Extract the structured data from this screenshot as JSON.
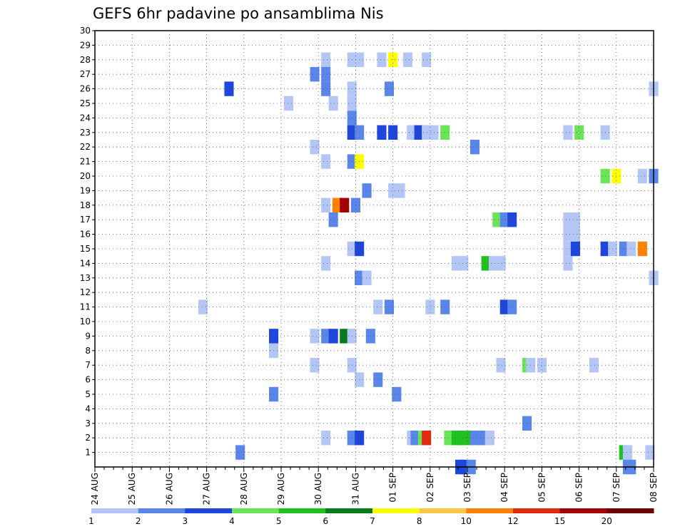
{
  "chart_data": {
    "type": "heatmap",
    "title": "GEFS 6hr padavine po ansamblima Nis",
    "x_tick_labels": [
      "24 AUG",
      "25 AUG",
      "26 AUG",
      "27 AUG",
      "28 AUG",
      "29 AUG",
      "30 AUG",
      "31 AUG",
      "01 SEP",
      "02 SEP",
      "03 SEP",
      "04 SEP",
      "05 SEP",
      "06 SEP",
      "07 SEP",
      "08 SEP"
    ],
    "y_tick_labels": [
      "1",
      "2",
      "3",
      "4",
      "5",
      "6",
      "7",
      "8",
      "9",
      "10",
      "11",
      "12",
      "13",
      "14",
      "15",
      "16",
      "17",
      "18",
      "19",
      "20",
      "21",
      "22",
      "23",
      "24",
      "25",
      "26",
      "27",
      "28",
      "29",
      "30"
    ],
    "x_range_days": [
      0,
      15
    ],
    "y_range": [
      0,
      30
    ],
    "grid": true,
    "legend": {
      "position": "bottom",
      "thresholds": [
        "1",
        "2",
        "3",
        "4",
        "5",
        "6",
        "7",
        "8",
        "10",
        "12",
        "15",
        "20"
      ],
      "colors": [
        "#b4c6f5",
        "#5a86ea",
        "#1e46dc",
        "#6ce45a",
        "#20c020",
        "#0a7a1e",
        "#ffff00",
        "#ffc846",
        "#ff8200",
        "#e12a0e",
        "#a50000",
        "#6e0000"
      ]
    },
    "cells": [
      {
        "x": 9.8,
        "y": 0,
        "c": 3
      },
      {
        "x": 9.9,
        "y": 0,
        "c": 3
      },
      {
        "x": 10.1,
        "y": 0,
        "c": 2
      },
      {
        "x": 14.3,
        "y": 0,
        "c": 2
      },
      {
        "x": 14.4,
        "y": 0,
        "c": 2
      },
      {
        "x": 3.9,
        "y": 1,
        "c": 2
      },
      {
        "x": 14.2,
        "y": 1,
        "c": 5
      },
      {
        "x": 14.3,
        "y": 1,
        "c": 1
      },
      {
        "x": 14.9,
        "y": 1,
        "c": 1
      },
      {
        "x": 6.2,
        "y": 2,
        "c": 1
      },
      {
        "x": 6.9,
        "y": 2,
        "c": 2
      },
      {
        "x": 7.1,
        "y": 2,
        "c": 3
      },
      {
        "x": 8.5,
        "y": 2,
        "c": 1
      },
      {
        "x": 8.6,
        "y": 2,
        "c": 2
      },
      {
        "x": 8.8,
        "y": 2,
        "c": 4
      },
      {
        "x": 8.9,
        "y": 2,
        "c": 10
      },
      {
        "x": 9.5,
        "y": 2,
        "c": 4
      },
      {
        "x": 9.7,
        "y": 2,
        "c": 5
      },
      {
        "x": 9.8,
        "y": 2,
        "c": 5
      },
      {
        "x": 10.0,
        "y": 2,
        "c": 5
      },
      {
        "x": 10.2,
        "y": 2,
        "c": 2
      },
      {
        "x": 10.4,
        "y": 2,
        "c": 2
      },
      {
        "x": 10.6,
        "y": 2,
        "c": 1
      },
      {
        "x": 11.6,
        "y": 3,
        "c": 2
      },
      {
        "x": 4.8,
        "y": 5,
        "c": 2
      },
      {
        "x": 8.1,
        "y": 5,
        "c": 2
      },
      {
        "x": 7.1,
        "y": 6,
        "c": 1
      },
      {
        "x": 7.6,
        "y": 6,
        "c": 2
      },
      {
        "x": 5.9,
        "y": 7,
        "c": 1
      },
      {
        "x": 6.9,
        "y": 7,
        "c": 1
      },
      {
        "x": 10.9,
        "y": 7,
        "c": 1
      },
      {
        "x": 11.6,
        "y": 7,
        "c": 4
      },
      {
        "x": 11.7,
        "y": 7,
        "c": 1
      },
      {
        "x": 12.0,
        "y": 7,
        "c": 1
      },
      {
        "x": 13.4,
        "y": 7,
        "c": 1
      },
      {
        "x": 4.8,
        "y": 8,
        "c": 1
      },
      {
        "x": 4.8,
        "y": 9,
        "c": 3
      },
      {
        "x": 5.9,
        "y": 9,
        "c": 1
      },
      {
        "x": 6.2,
        "y": 9,
        "c": 2
      },
      {
        "x": 6.4,
        "y": 9,
        "c": 3
      },
      {
        "x": 6.7,
        "y": 9,
        "c": 6
      },
      {
        "x": 6.9,
        "y": 9,
        "c": 1
      },
      {
        "x": 7.4,
        "y": 9,
        "c": 2
      },
      {
        "x": 2.9,
        "y": 11,
        "c": 1
      },
      {
        "x": 7.6,
        "y": 11,
        "c": 1
      },
      {
        "x": 7.9,
        "y": 11,
        "c": 2
      },
      {
        "x": 9.0,
        "y": 11,
        "c": 1
      },
      {
        "x": 9.4,
        "y": 11,
        "c": 2
      },
      {
        "x": 11.0,
        "y": 11,
        "c": 3
      },
      {
        "x": 11.2,
        "y": 11,
        "c": 2
      },
      {
        "x": 7.1,
        "y": 13,
        "c": 2
      },
      {
        "x": 7.3,
        "y": 13,
        "c": 1
      },
      {
        "x": 15.0,
        "y": 13,
        "c": 1
      },
      {
        "x": 6.2,
        "y": 14,
        "c": 1
      },
      {
        "x": 9.7,
        "y": 14,
        "c": 1
      },
      {
        "x": 9.9,
        "y": 14,
        "c": 1
      },
      {
        "x": 10.5,
        "y": 14,
        "c": 5
      },
      {
        "x": 10.7,
        "y": 14,
        "c": 1
      },
      {
        "x": 10.9,
        "y": 14,
        "c": 1
      },
      {
        "x": 12.7,
        "y": 14,
        "c": 1
      },
      {
        "x": 6.9,
        "y": 15,
        "c": 1
      },
      {
        "x": 7.1,
        "y": 15,
        "c": 3
      },
      {
        "x": 12.7,
        "y": 15,
        "c": 1
      },
      {
        "x": 12.9,
        "y": 15,
        "c": 3
      },
      {
        "x": 13.7,
        "y": 15,
        "c": 3
      },
      {
        "x": 13.9,
        "y": 15,
        "c": 1
      },
      {
        "x": 14.2,
        "y": 15,
        "c": 2
      },
      {
        "x": 14.4,
        "y": 15,
        "c": 1
      },
      {
        "x": 14.7,
        "y": 15,
        "c": 9
      },
      {
        "x": 12.7,
        "y": 16,
        "c": 1
      },
      {
        "x": 12.9,
        "y": 16,
        "c": 1
      },
      {
        "x": 12.7,
        "y": 17,
        "c": 1
      },
      {
        "x": 12.9,
        "y": 17,
        "c": 1
      },
      {
        "x": 6.4,
        "y": 17,
        "c": 2
      },
      {
        "x": 10.8,
        "y": 17,
        "c": 4
      },
      {
        "x": 11.0,
        "y": 17,
        "c": 2
      },
      {
        "x": 11.2,
        "y": 17,
        "c": 3
      },
      {
        "x": 6.2,
        "y": 18,
        "c": 1
      },
      {
        "x": 6.5,
        "y": 18,
        "c": 9
      },
      {
        "x": 6.7,
        "y": 18,
        "c": 11
      },
      {
        "x": 7.0,
        "y": 18,
        "c": 2
      },
      {
        "x": 7.3,
        "y": 19,
        "c": 2
      },
      {
        "x": 8.0,
        "y": 19,
        "c": 1
      },
      {
        "x": 8.2,
        "y": 19,
        "c": 1
      },
      {
        "x": 14.7,
        "y": 20,
        "c": 1
      },
      {
        "x": 15.0,
        "y": 20,
        "c": 2
      },
      {
        "x": 13.7,
        "y": 20,
        "c": 4
      },
      {
        "x": 14.0,
        "y": 20,
        "c": 7
      },
      {
        "x": 6.2,
        "y": 21,
        "c": 1
      },
      {
        "x": 6.9,
        "y": 21,
        "c": 2
      },
      {
        "x": 7.1,
        "y": 21,
        "c": 7
      },
      {
        "x": 5.9,
        "y": 22,
        "c": 1
      },
      {
        "x": 10.2,
        "y": 22,
        "c": 2
      },
      {
        "x": 6.9,
        "y": 23,
        "c": 3
      },
      {
        "x": 7.1,
        "y": 23,
        "c": 2
      },
      {
        "x": 7.7,
        "y": 23,
        "c": 3
      },
      {
        "x": 8.0,
        "y": 23,
        "c": 3
      },
      {
        "x": 8.5,
        "y": 23,
        "c": 1
      },
      {
        "x": 8.7,
        "y": 23,
        "c": 3
      },
      {
        "x": 8.9,
        "y": 23,
        "c": 1
      },
      {
        "x": 9.1,
        "y": 23,
        "c": 1
      },
      {
        "x": 9.4,
        "y": 23,
        "c": 4
      },
      {
        "x": 12.7,
        "y": 23,
        "c": 1
      },
      {
        "x": 13.0,
        "y": 23,
        "c": 4
      },
      {
        "x": 13.7,
        "y": 23,
        "c": 1
      },
      {
        "x": 6.9,
        "y": 24,
        "c": 2
      },
      {
        "x": 5.2,
        "y": 25,
        "c": 1
      },
      {
        "x": 6.4,
        "y": 25,
        "c": 1
      },
      {
        "x": 6.9,
        "y": 25,
        "c": 1
      },
      {
        "x": 3.6,
        "y": 26,
        "c": 3
      },
      {
        "x": 6.2,
        "y": 26,
        "c": 2
      },
      {
        "x": 6.9,
        "y": 26,
        "c": 1
      },
      {
        "x": 7.9,
        "y": 26,
        "c": 2
      },
      {
        "x": 15.0,
        "y": 26,
        "c": 1
      },
      {
        "x": 5.9,
        "y": 27,
        "c": 2
      },
      {
        "x": 6.2,
        "y": 27,
        "c": 2
      },
      {
        "x": 6.2,
        "y": 28,
        "c": 1
      },
      {
        "x": 6.9,
        "y": 28,
        "c": 1
      },
      {
        "x": 7.1,
        "y": 28,
        "c": 1
      },
      {
        "x": 7.7,
        "y": 28,
        "c": 1
      },
      {
        "x": 8.0,
        "y": 28,
        "c": 7
      },
      {
        "x": 8.4,
        "y": 28,
        "c": 1
      },
      {
        "x": 8.9,
        "y": 28,
        "c": 1
      }
    ]
  }
}
